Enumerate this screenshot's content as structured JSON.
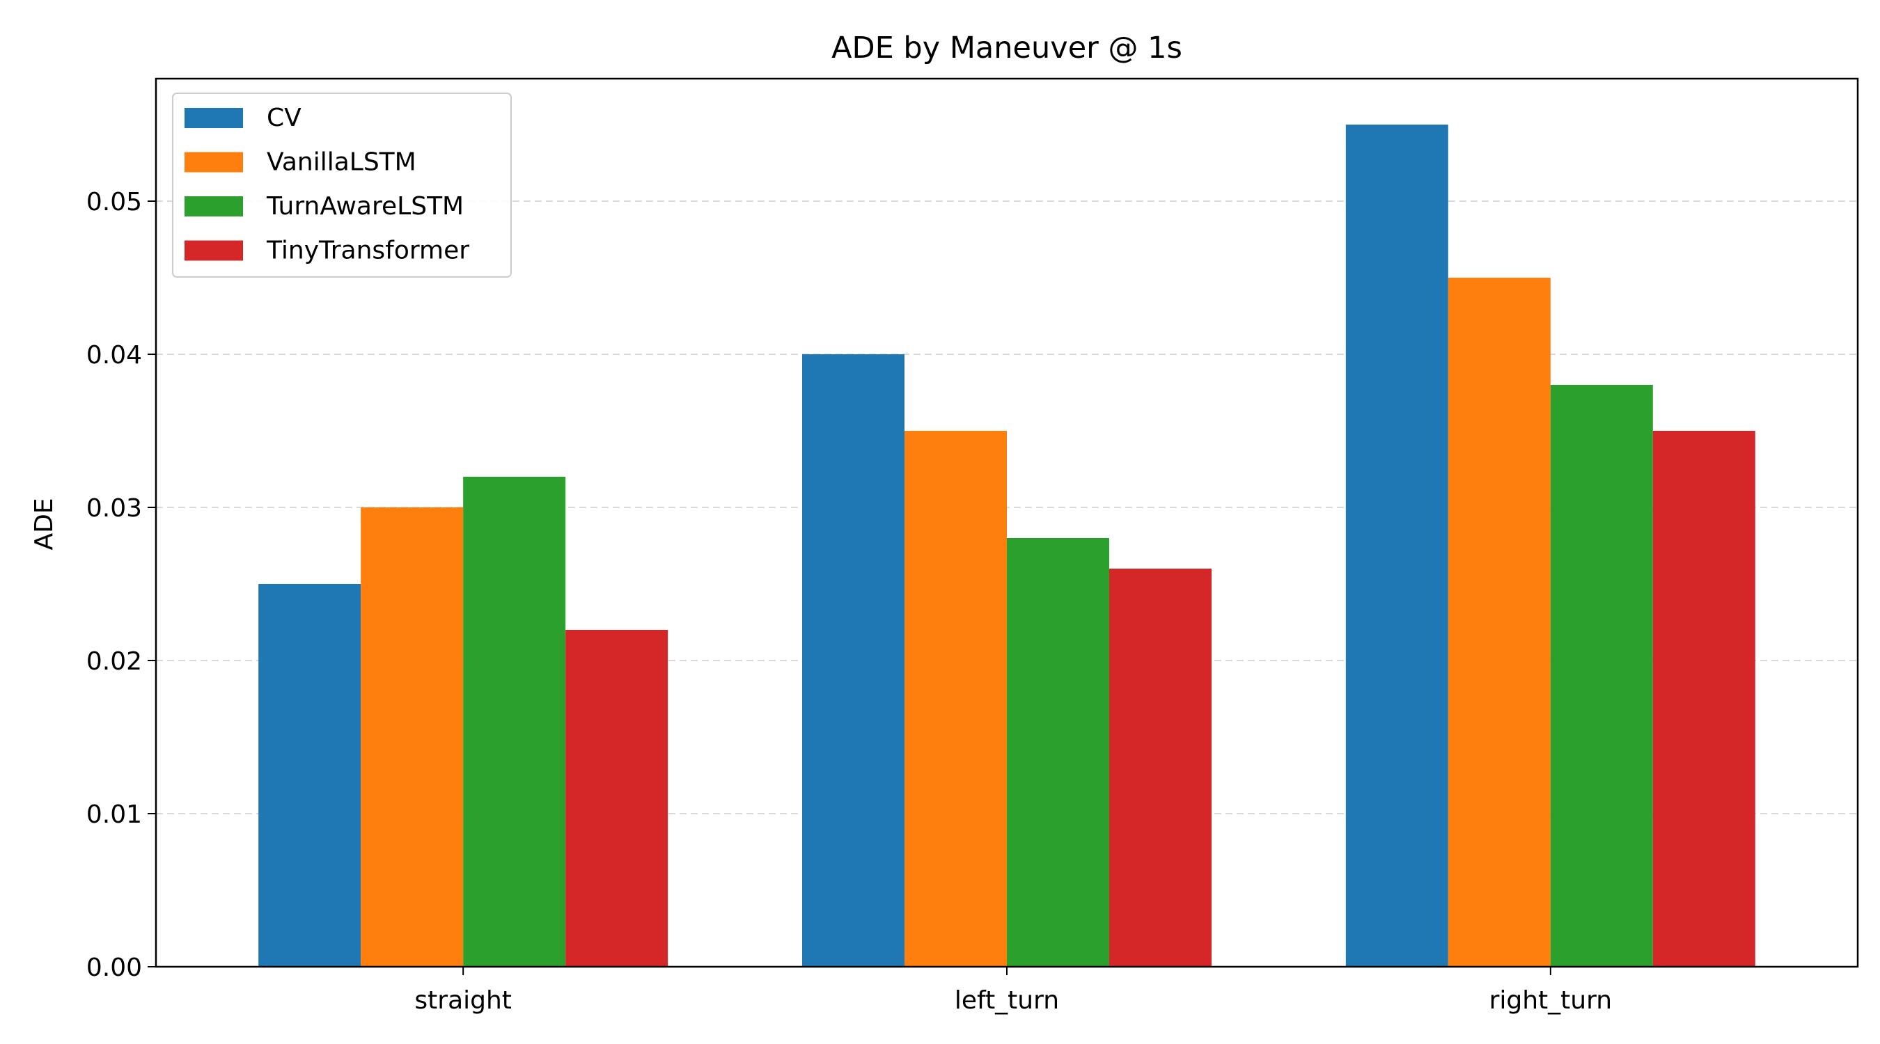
{
  "chart_data": {
    "type": "bar",
    "title": "ADE by Maneuver @ 1s",
    "xlabel": "",
    "ylabel": "ADE",
    "categories": [
      "straight",
      "left_turn",
      "right_turn"
    ],
    "ylim": [
      0,
      0.058
    ],
    "yticks": [
      "0.00",
      "0.01",
      "0.02",
      "0.03",
      "0.04",
      "0.05"
    ],
    "ytick_values": [
      0,
      0.01,
      0.02,
      0.03,
      0.04,
      0.05
    ],
    "grid": "horizontal dashed",
    "legend_position": "top-left",
    "series": [
      {
        "name": "CV",
        "color": "#1f77b4",
        "values": [
          0.025,
          0.04,
          0.055
        ]
      },
      {
        "name": "VanillaLSTM",
        "color": "#ff7f0e",
        "values": [
          0.03,
          0.035,
          0.045
        ]
      },
      {
        "name": "TurnAwareLSTM",
        "color": "#2ca02c",
        "values": [
          0.032,
          0.028,
          0.038
        ]
      },
      {
        "name": "TinyTransformer",
        "color": "#d62728",
        "values": [
          0.022,
          0.026,
          0.035
        ]
      }
    ]
  }
}
